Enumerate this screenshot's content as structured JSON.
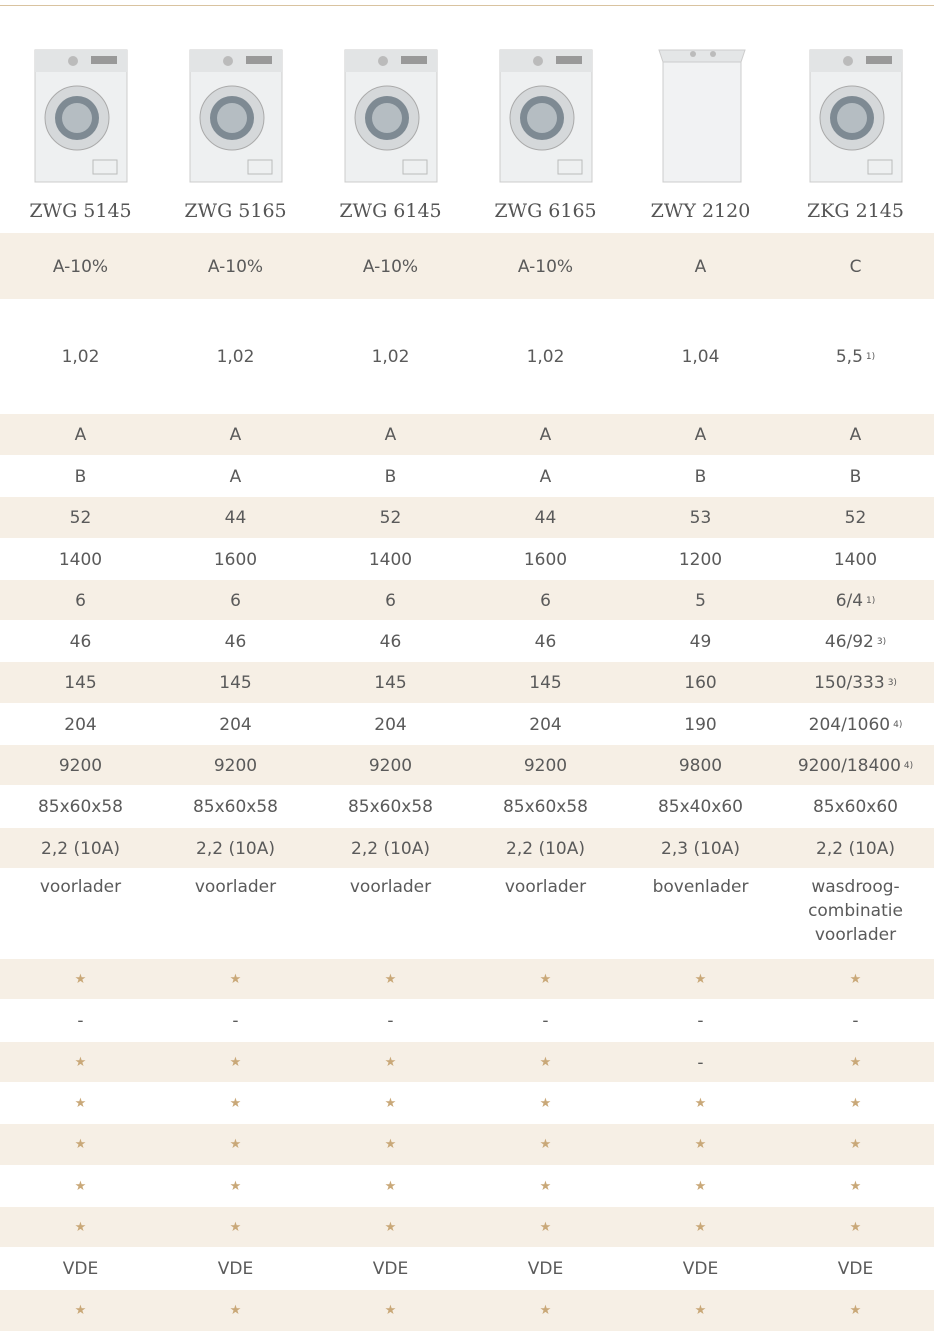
{
  "products": [
    "ZWG 5145",
    "ZWG 5165",
    "ZWG 6145",
    "ZWG 6165",
    "ZWY 2120",
    "ZKG 2145"
  ],
  "rows": [
    [
      "A-10%",
      "A-10%",
      "A-10%",
      "A-10%",
      "A",
      "C"
    ],
    [
      "1,02",
      "1,02",
      "1,02",
      "1,02",
      "1,04",
      {
        "text": "5,5",
        "note": "1)"
      }
    ],
    [
      "A",
      "A",
      "A",
      "A",
      "A",
      "A"
    ],
    [
      "B",
      "A",
      "B",
      "A",
      "B",
      "B"
    ],
    [
      "52",
      "44",
      "52",
      "44",
      "53",
      "52"
    ],
    [
      "1400",
      "1600",
      "1400",
      "1600",
      "1200",
      "1400"
    ],
    [
      "6",
      "6",
      "6",
      "6",
      "5",
      {
        "text": "6/4",
        "note": "1)"
      }
    ],
    [
      "46",
      "46",
      "46",
      "46",
      "49",
      {
        "text": "46/92",
        "note": "3)"
      }
    ],
    [
      "145",
      "145",
      "145",
      "145",
      "160",
      {
        "text": "150/333",
        "note": "3)"
      }
    ],
    [
      "204",
      "204",
      "204",
      "204",
      "190",
      {
        "text": "204/1060",
        "note": "4)"
      }
    ],
    [
      "9200",
      "9200",
      "9200",
      "9200",
      "9800",
      {
        "text": "9200/18400",
        "note": "4)"
      }
    ],
    [
      "85x60x58",
      "85x60x58",
      "85x60x58",
      "85x60x58",
      "85x40x60",
      "85x60x60"
    ],
    [
      "2,2 (10A)",
      "2,2 (10A)",
      "2,2 (10A)",
      "2,2 (10A)",
      "2,3 (10A)",
      "2,2 (10A)"
    ],
    [
      "voorlader",
      "voorlader",
      "voorlader",
      "voorlader",
      "bovenlader",
      "wasdroog-\ncombinatie\nvoorlader"
    ],
    [
      "★",
      "★",
      "★",
      "★",
      "★",
      "★"
    ],
    [
      "-",
      "-",
      "-",
      "-",
      "-",
      "-"
    ],
    [
      "★",
      "★",
      "★",
      "★",
      "-",
      "★"
    ],
    [
      "★",
      "★",
      "★",
      "★",
      "★",
      "★"
    ],
    [
      "★",
      "★",
      "★",
      "★",
      "★",
      "★"
    ],
    [
      "★",
      "★",
      "★",
      "★",
      "★",
      "★"
    ],
    [
      "★",
      "★",
      "★",
      "★",
      "★",
      "★"
    ],
    [
      "VDE",
      "VDE",
      "VDE",
      "VDE",
      "VDE",
      "VDE"
    ],
    [
      "★",
      "★",
      "★",
      "★",
      "★",
      "★"
    ]
  ]
}
